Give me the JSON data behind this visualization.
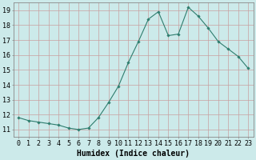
{
  "x": [
    0,
    1,
    2,
    3,
    4,
    5,
    6,
    7,
    8,
    9,
    10,
    11,
    12,
    13,
    14,
    15,
    16,
    17,
    18,
    19,
    20,
    21,
    22,
    23
  ],
  "y": [
    11.8,
    11.6,
    11.5,
    11.4,
    11.3,
    11.1,
    11.0,
    11.1,
    11.8,
    12.8,
    13.9,
    15.5,
    16.9,
    18.4,
    18.9,
    17.3,
    17.4,
    19.2,
    18.6,
    17.8,
    16.9,
    16.4,
    15.9,
    15.1
  ],
  "xlabel": "Humidex (Indice chaleur)",
  "yticks": [
    11,
    12,
    13,
    14,
    15,
    16,
    17,
    18,
    19
  ],
  "xticks": [
    0,
    1,
    2,
    3,
    4,
    5,
    6,
    7,
    8,
    9,
    10,
    11,
    12,
    13,
    14,
    15,
    16,
    17,
    18,
    19,
    20,
    21,
    22,
    23
  ],
  "ylim": [
    10.5,
    19.5
  ],
  "xlim": [
    -0.5,
    23.5
  ],
  "line_color": "#2e7d6e",
  "marker": "D",
  "marker_size": 1.8,
  "bg_color": "#cceaea",
  "grid_color": "#c8a0a0",
  "xlabel_fontsize": 7,
  "tick_fontsize": 6
}
